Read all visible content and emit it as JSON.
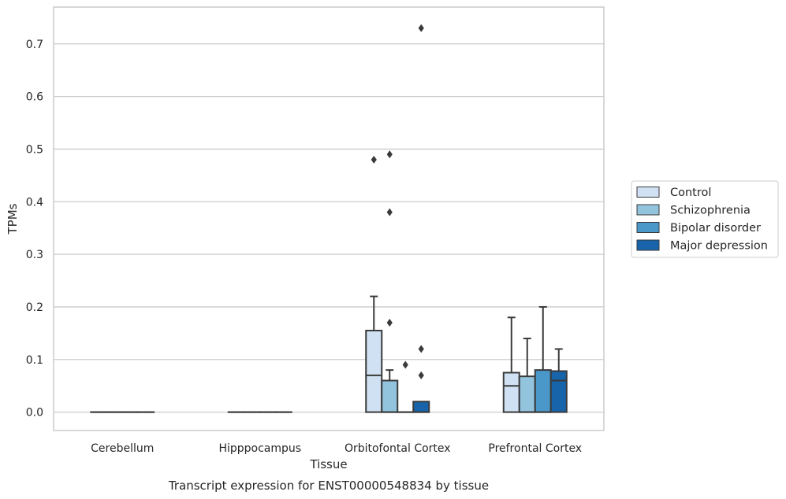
{
  "chart_data": {
    "type": "box",
    "caption": "Transcript expression for ENST00000548834 by tissue",
    "xlabel": "Tissue",
    "ylabel": "TPMs",
    "ylim": [
      -0.035,
      0.77
    ],
    "yticks": [
      0.0,
      0.1,
      0.2,
      0.3,
      0.4,
      0.5,
      0.6,
      0.7
    ],
    "ytick_labels": [
      "0.0",
      "0.1",
      "0.2",
      "0.3",
      "0.4",
      "0.5",
      "0.6",
      "0.7"
    ],
    "grid": "horizontal",
    "legend_placement": "outside right",
    "categories": [
      "Cerebellum",
      "Hipppocampus",
      "Orbitofontal Cortex",
      "Prefrontal Cortex"
    ],
    "series": [
      {
        "name": "Control",
        "color": "#cfe1f2",
        "boxes": [
          {
            "q1": 0,
            "median": 0,
            "q3": 0,
            "whisker_low": 0,
            "whisker_high": 0,
            "outliers": []
          },
          {
            "q1": 0,
            "median": 0,
            "q3": 0,
            "whisker_low": 0,
            "whisker_high": 0,
            "outliers": []
          },
          {
            "q1": 0,
            "median": 0.07,
            "q3": 0.155,
            "whisker_low": 0,
            "whisker_high": 0.22,
            "outliers": [
              0.48
            ]
          },
          {
            "q1": 0,
            "median": 0.05,
            "q3": 0.075,
            "whisker_low": 0,
            "whisker_high": 0.18,
            "outliers": []
          }
        ]
      },
      {
        "name": "Schizophrenia",
        "color": "#93c4de",
        "boxes": [
          {
            "q1": 0,
            "median": 0,
            "q3": 0,
            "whisker_low": 0,
            "whisker_high": 0,
            "outliers": []
          },
          {
            "q1": 0,
            "median": 0,
            "q3": 0,
            "whisker_low": 0,
            "whisker_high": 0,
            "outliers": []
          },
          {
            "q1": 0,
            "median": 0,
            "q3": 0.06,
            "whisker_low": 0,
            "whisker_high": 0.08,
            "outliers": [
              0.17,
              0.38,
              0.49
            ]
          },
          {
            "q1": 0,
            "median": 0,
            "q3": 0.068,
            "whisker_low": 0,
            "whisker_high": 0.14,
            "outliers": []
          }
        ]
      },
      {
        "name": "Bipolar disorder",
        "color": "#4a98c9",
        "boxes": [
          {
            "q1": 0,
            "median": 0,
            "q3": 0,
            "whisker_low": 0,
            "whisker_high": 0,
            "outliers": []
          },
          {
            "q1": 0,
            "median": 0,
            "q3": 0,
            "whisker_low": 0,
            "whisker_high": 0,
            "outliers": []
          },
          {
            "q1": 0,
            "median": 0,
            "q3": 0,
            "whisker_low": 0,
            "whisker_high": 0,
            "outliers": [
              0.09
            ]
          },
          {
            "q1": 0,
            "median": 0,
            "q3": 0.08,
            "whisker_low": 0,
            "whisker_high": 0.2,
            "outliers": []
          }
        ]
      },
      {
        "name": "Major depression",
        "color": "#1764ab",
        "boxes": [
          {
            "q1": 0,
            "median": 0,
            "q3": 0,
            "whisker_low": 0,
            "whisker_high": 0,
            "outliers": []
          },
          {
            "q1": 0,
            "median": 0,
            "q3": 0,
            "whisker_low": 0,
            "whisker_high": 0,
            "outliers": []
          },
          {
            "q1": 0,
            "median": 0,
            "q3": 0.02,
            "whisker_low": 0,
            "whisker_high": 0.02,
            "outliers": [
              0.07,
              0.12,
              0.73
            ]
          },
          {
            "q1": 0,
            "median": 0.06,
            "q3": 0.078,
            "whisker_low": 0,
            "whisker_high": 0.12,
            "outliers": []
          }
        ]
      }
    ]
  }
}
